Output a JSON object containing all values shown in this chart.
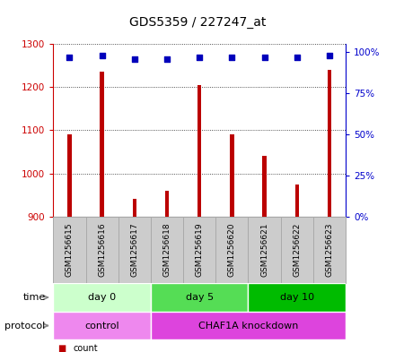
{
  "title": "GDS5359 / 227247_at",
  "samples": [
    "GSM1256615",
    "GSM1256616",
    "GSM1256617",
    "GSM1256618",
    "GSM1256619",
    "GSM1256620",
    "GSM1256621",
    "GSM1256622",
    "GSM1256623"
  ],
  "counts": [
    1090,
    1235,
    940,
    960,
    1205,
    1090,
    1040,
    975,
    1240
  ],
  "percentiles": [
    97,
    98,
    96,
    96,
    97,
    97,
    97,
    97,
    98
  ],
  "ylim": [
    900,
    1300
  ],
  "yticks": [
    900,
    1000,
    1100,
    1200,
    1300
  ],
  "y2lim": [
    0,
    100
  ],
  "y2ticks": [
    0,
    25,
    50,
    75,
    100
  ],
  "y2labels": [
    "0%",
    "25%",
    "50%",
    "75%",
    "100%"
  ],
  "bar_color": "#bb0000",
  "dot_color": "#0000bb",
  "bar_width": 0.12,
  "time_groups": [
    {
      "label": "day 0",
      "start": 0,
      "end": 3,
      "color": "#ccffcc"
    },
    {
      "label": "day 5",
      "start": 3,
      "end": 6,
      "color": "#55dd55"
    },
    {
      "label": "day 10",
      "start": 6,
      "end": 9,
      "color": "#00bb00"
    }
  ],
  "protocol_groups": [
    {
      "label": "control",
      "start": 0,
      "end": 3,
      "color": "#ee88ee"
    },
    {
      "label": "CHAF1A knockdown",
      "start": 3,
      "end": 9,
      "color": "#dd44dd"
    }
  ],
  "grid_color": "#222222",
  "bg_color": "#ffffff",
  "sample_bg": "#cccccc",
  "sample_border": "#aaaaaa",
  "left_axis_color": "#cc0000",
  "right_axis_color": "#0000cc",
  "title_fontsize": 10,
  "tick_fontsize": 7.5,
  "label_fontsize": 8,
  "sample_fontsize": 6.5
}
